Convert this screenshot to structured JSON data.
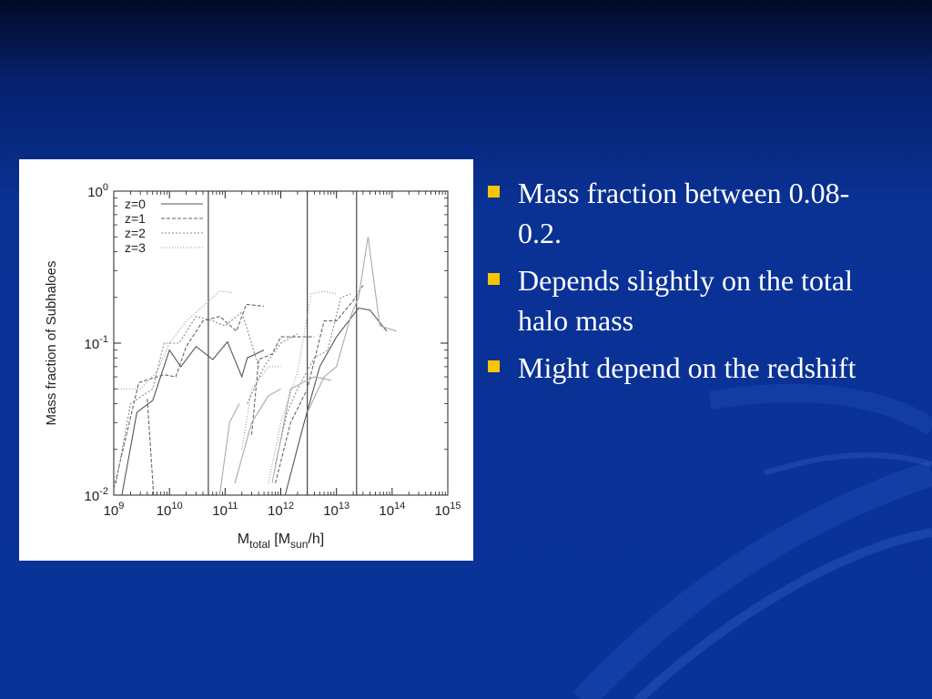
{
  "bullets": [
    {
      "text": "Mass fraction between 0.08-0.2."
    },
    {
      "text": "Depends slightly on the total halo mass"
    },
    {
      "text": "Might depend on the redshift"
    }
  ],
  "colors": {
    "background": "#0a3399",
    "bullet_marker": "#f7c600",
    "text": "#ffffff",
    "chart_panel": "#ffffff"
  },
  "chart_data": {
    "type": "line",
    "x_scale": "log",
    "y_scale": "log",
    "xlim": [
      1000000000.0,
      1000000000000000.0
    ],
    "ylim": [
      0.01,
      1
    ],
    "ylabel": "Mass fraction of Subhaloes",
    "xlabel": {
      "main": "M",
      "sub1": "total",
      "mid": " [M",
      "sub2": "sun",
      "end": "/h]"
    },
    "x_ticks": [
      {
        "base": "10",
        "exp": "9",
        "value": 1000000000.0
      },
      {
        "base": "10",
        "exp": "10",
        "value": 10000000000.0
      },
      {
        "base": "10",
        "exp": "11",
        "value": 100000000000.0
      },
      {
        "base": "10",
        "exp": "12",
        "value": 1000000000000.0
      },
      {
        "base": "10",
        "exp": "13",
        "value": 10000000000000.0
      },
      {
        "base": "10",
        "exp": "14",
        "value": 100000000000000.0
      },
      {
        "base": "10",
        "exp": "15",
        "value": 1000000000000000.0
      }
    ],
    "y_ticks": [
      {
        "base": "10",
        "exp": "0",
        "value": 1
      },
      {
        "base": "10",
        "exp": "-1",
        "value": 0.1
      },
      {
        "base": "10",
        "exp": "-2",
        "value": 0.01
      }
    ],
    "vertical_lines_x": [
      50000000000.0,
      3000000000000.0,
      23000000000000.0
    ],
    "legend_position": "top-left",
    "grid": false,
    "series": [
      {
        "name": "z=0",
        "dash": "",
        "color": "#555555",
        "width": 1.1,
        "segments": [
          [
            [
              1400000000.0,
              0.01
            ],
            [
              2600000000.0,
              0.035
            ],
            [
              5000000000.0,
              0.042
            ],
            [
              10000000000.0,
              0.09
            ],
            [
              16000000000.0,
              0.07
            ],
            [
              30000000000.0,
              0.095
            ],
            [
              60000000000.0,
              0.078
            ],
            [
              110000000000.0,
              0.102
            ],
            [
              200000000000.0,
              0.06
            ],
            [
              250000000000.0,
              0.08
            ],
            [
              500000000000.0,
              0.09
            ]
          ],
          [
            [
              1200000000000.0,
              0.01
            ],
            [
              2500000000000.0,
              0.028
            ],
            [
              5000000000000.0,
              0.07
            ],
            [
              10000000000000.0,
              0.11
            ],
            [
              25000000000000.0,
              0.17
            ],
            [
              40000000000000.0,
              0.165
            ],
            [
              80000000000000.0,
              0.12
            ]
          ]
        ]
      },
      {
        "name": "z=1",
        "dash": "4 2",
        "color": "#666666",
        "width": 1.1,
        "segments": [
          [
            [
              1000000000.0,
              0.011
            ],
            [
              2800000000.0,
              0.055
            ],
            [
              8000000000.0,
              0.062
            ],
            [
              13000000000.0,
              0.06
            ],
            [
              20000000000.0,
              0.095
            ],
            [
              40000000000.0,
              0.14
            ],
            [
              80000000000.0,
              0.15
            ],
            [
              160000000000.0,
              0.12
            ],
            [
              240000000000.0,
              0.18
            ],
            [
              500000000000.0,
              0.175
            ]
          ],
          [
            [
              4000000000.0,
              0.043
            ],
            [
              5200000000.0,
              0.01
            ]
          ],
          [
            [
              800000000000.0,
              0.012
            ],
            [
              1500000000000.0,
              0.03
            ],
            [
              3000000000000.0,
              0.05
            ],
            [
              6000000000000.0,
              0.14
            ],
            [
              10000000000000.0,
              0.14
            ],
            [
              20000000000000.0,
              0.19
            ],
            [
              30000000000000.0,
              0.24
            ]
          ],
          [
            [
              300000000000.0,
              0.025
            ],
            [
              400000000000.0,
              0.078
            ],
            [
              700000000000.0,
              0.085
            ],
            [
              1000000000000.0,
              0.11
            ],
            [
              2000000000000.0,
              0.11
            ],
            [
              4000000000000.0,
              0.11
            ]
          ]
        ]
      },
      {
        "name": "z=2",
        "dash": "2 2",
        "color": "#888888",
        "width": 1.1,
        "segments": [
          [
            [
              1100000000.0,
              0.012
            ],
            [
              2000000000.0,
              0.04
            ],
            [
              5000000000.0,
              0.05
            ],
            [
              8000000000.0,
              0.1
            ],
            [
              15000000000.0,
              0.1
            ],
            [
              30000000000.0,
              0.15
            ],
            [
              60000000000.0,
              0.14
            ],
            [
              100000000000.0,
              0.13
            ],
            [
              200000000000.0,
              0.16
            ],
            [
              400000000000.0,
              0.07
            ]
          ],
          [
            [
              800000000000.0,
              0.016
            ],
            [
              1300000000000.0,
              0.035
            ],
            [
              2000000000000.0,
              0.05
            ],
            [
              4000000000000.0,
              0.08
            ],
            [
              7000000000000.0,
              0.09
            ],
            [
              12000000000000.0,
              0.2
            ],
            [
              18000000000000.0,
              0.21
            ]
          ],
          [
            [
              250000000000.0,
              0.04
            ],
            [
              500000000000.0,
              0.07
            ],
            [
              1000000000000.0,
              0.1
            ],
            [
              2000000000000.0,
              0.115
            ]
          ]
        ]
      },
      {
        "name": "z=3",
        "dash": "1 2",
        "color": "#999999",
        "width": 1.1,
        "segments": [
          [
            [
              1200000000.0,
              0.05
            ],
            [
              3000000000.0,
              0.05
            ],
            [
              6000000000.0,
              0.065
            ],
            [
              10000000000.0,
              0.1
            ],
            [
              20000000000.0,
              0.14
            ],
            [
              40000000000.0,
              0.175
            ],
            [
              80000000000.0,
              0.22
            ],
            [
              140000000000.0,
              0.215
            ]
          ],
          [
            [
              600000000000.0,
              0.012
            ],
            [
              1000000000000.0,
              0.03
            ],
            [
              2000000000000.0,
              0.065
            ],
            [
              3500000000000.0,
              0.21
            ],
            [
              6000000000000.0,
              0.22
            ],
            [
              10000000000000.0,
              0.21
            ]
          ],
          [
            [
              200000000000.0,
              0.02
            ],
            [
              300000000000.0,
              0.05
            ],
            [
              600000000000.0,
              0.07
            ],
            [
              1000000000000.0,
              0.07
            ]
          ]
        ]
      },
      {
        "name": "",
        "dash": "",
        "color": "#aaaaaa",
        "width": 1.1,
        "segments": [
          [
            [
              150000000000.0,
              0.012
            ],
            [
              300000000000.0,
              0.03
            ],
            [
              600000000000.0,
              0.045
            ],
            [
              1000000000000.0,
              0.05
            ]
          ],
          [
            [
              3000000000000.0,
              0.035
            ],
            [
              6000000000000.0,
              0.06
            ],
            [
              10000000000000.0,
              0.07
            ],
            [
              18000000000000.0,
              0.15
            ],
            [
              25000000000000.0,
              0.2
            ],
            [
              37000000000000.0,
              0.5
            ],
            [
              60000000000000.0,
              0.13
            ],
            [
              120000000000000.0,
              0.12
            ]
          ],
          [
            [
              700000000000.0,
              0.012
            ],
            [
              1500000000000.0,
              0.05
            ],
            [
              4000000000000.0,
              0.06
            ],
            [
              8000000000000.0,
              0.057
            ]
          ],
          [
            [
              80000000000.0,
              0.01
            ],
            [
              120000000000.0,
              0.03
            ],
            [
              180000000000.0,
              0.04
            ]
          ]
        ]
      }
    ]
  }
}
